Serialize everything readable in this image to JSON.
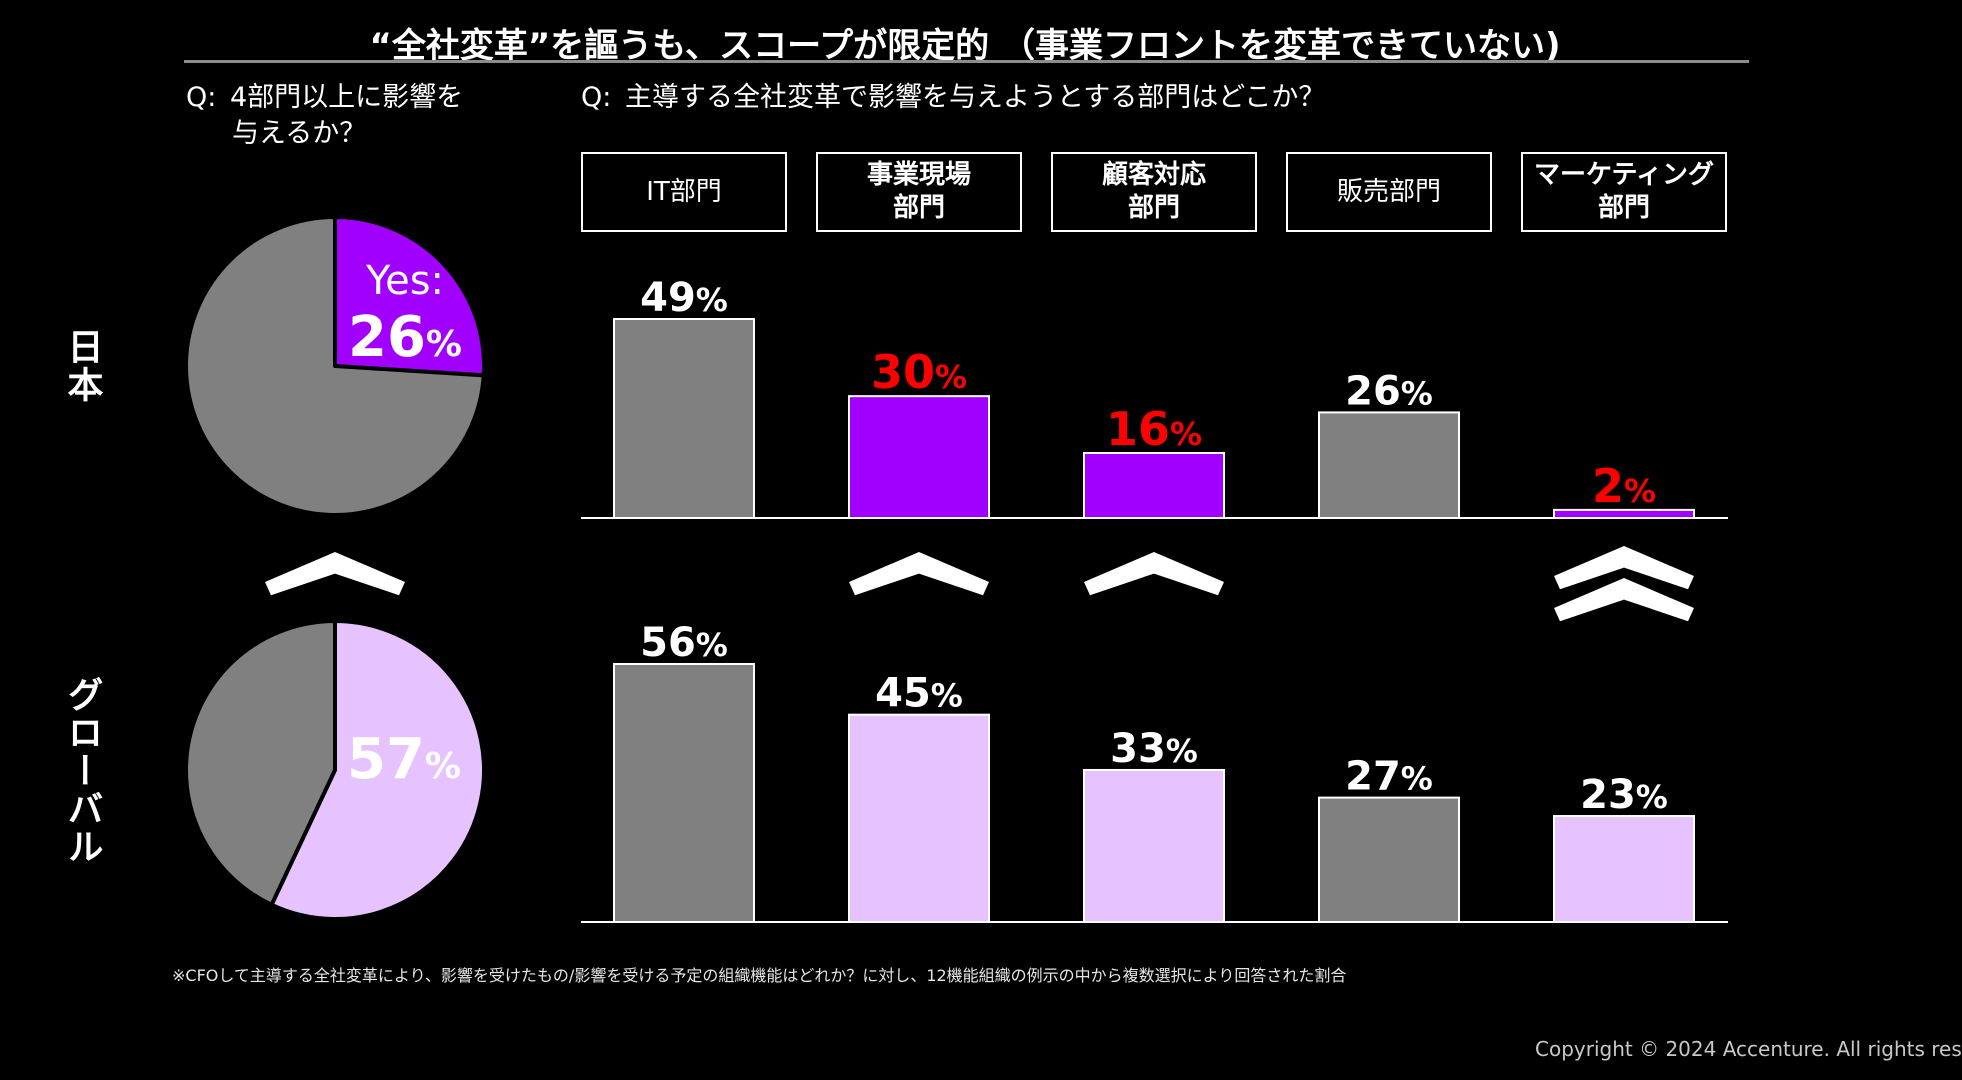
{
  "title": "“全社変革”を謳うも、スコープが限定的 （事業フロントを変革できていない)",
  "question_left": {
    "prefix": "Q:",
    "line1": "4部門以上に影響を",
    "line2": "与えるか？"
  },
  "question_right": {
    "prefix": "Q:",
    "text": "主導する全社変革で影響を与えようとする部門はどこか？"
  },
  "regions": {
    "japan": "日本",
    "global": "グローバル"
  },
  "categories": [
    {
      "label": "IT部門",
      "bold": false
    },
    {
      "label": "事業現場\n部門",
      "bold": true
    },
    {
      "label": "顧客対応\n部門",
      "bold": true
    },
    {
      "label": "販売部門",
      "bold": false
    },
    {
      "label": "マーケティング\n部門",
      "bold": true
    }
  ],
  "colors": {
    "gray": "#808080",
    "purple": "#a100ff",
    "lavender": "#e6c3ff",
    "red": "#ff0000",
    "white": "#ffffff"
  },
  "chart_data": [
    {
      "type": "pie",
      "region": "日本",
      "slices": [
        {
          "label": "Yes",
          "value": 26
        },
        {
          "label": "",
          "value": 74
        }
      ],
      "label_prefix": "Yes:",
      "label_value": "26",
      "label_unit": "%"
    },
    {
      "type": "pie",
      "region": "グローバル",
      "slices": [
        {
          "label": "",
          "value": 57
        },
        {
          "label": "",
          "value": 43
        }
      ],
      "label_value": "57",
      "label_unit": "%"
    },
    {
      "type": "bar",
      "region": "日本",
      "categories": [
        "IT部門",
        "事業現場部門",
        "顧客対応部門",
        "販売部門",
        "マーケティング部門"
      ],
      "values": [
        49,
        30,
        16,
        26,
        2
      ],
      "bar_colors": [
        "gray",
        "purple",
        "purple",
        "gray",
        "purple"
      ],
      "label_colors": [
        "white",
        "red",
        "red",
        "white",
        "red"
      ],
      "unit": "%"
    },
    {
      "type": "bar",
      "region": "グローバル",
      "categories": [
        "IT部門",
        "事業現場部門",
        "顧客対応部門",
        "販売部門",
        "マーケティング部門"
      ],
      "values": [
        56,
        45,
        33,
        27,
        23
      ],
      "bar_colors": [
        "gray",
        "lavender",
        "lavender",
        "gray",
        "lavender"
      ],
      "label_colors": [
        "white",
        "white",
        "white",
        "white",
        "white"
      ],
      "unit": "%"
    }
  ],
  "comparison_markers": [
    {
      "target": "pie",
      "count": 1
    },
    {
      "target": "事業現場部門",
      "count": 1
    },
    {
      "target": "顧客対応部門",
      "count": 1
    },
    {
      "target": "マーケティング部門",
      "count": 2
    }
  ],
  "footnote": "※CFOして主導する全社変革により、影響を受けたもの/影響を受ける予定の組織機能はどれか？に対し、12機能組織の例示の中から複数選択により回答された割合",
  "copyright": "Copyright © 2024 Accenture. All rights res"
}
